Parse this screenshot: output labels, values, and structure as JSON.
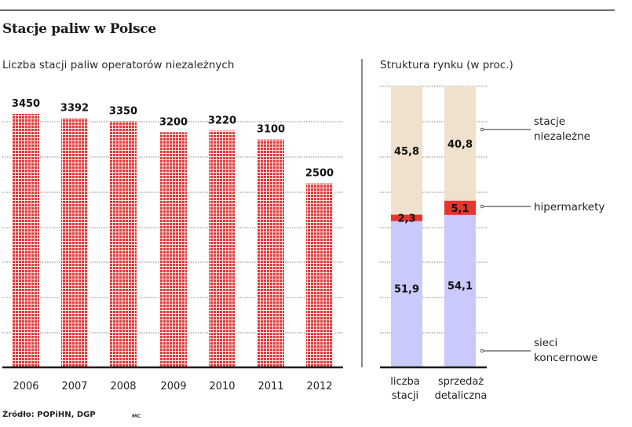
{
  "header": {
    "title": "Stacje paliw w Polsce"
  },
  "footer": {
    "source": "Źródło: POPiHN, DGP",
    "author": "MC"
  },
  "colors": {
    "bar_dots": "#e23a3a",
    "independent": "#efe1cc",
    "hypermarkets": "#e8332f",
    "chains": "#c9c9fb",
    "grid": "#9a9a9a",
    "axis": "#1a1a1a"
  },
  "chart_data": [
    {
      "type": "bar",
      "title": "Liczba stacji paliw operatorów niezależnych",
      "xlabel": "",
      "ylabel": "",
      "categories": [
        "2006",
        "2007",
        "2008",
        "2009",
        "2010",
        "2011",
        "2012"
      ],
      "values": [
        3450,
        3392,
        3350,
        3200,
        3220,
        3100,
        2500
      ],
      "data_labels": [
        "3450",
        "3392",
        "3350",
        "3200",
        "3220",
        "3100",
        "2500"
      ],
      "ylim": [
        0,
        3800
      ],
      "grid": true,
      "legend": "none"
    },
    {
      "type": "bar",
      "stacked": true,
      "title": "Struktura rynku (w proc.)",
      "categories": [
        "liczba stacji",
        "sprzedaż detaliczna"
      ],
      "category_lines": [
        [
          "liczba",
          "stacji"
        ],
        [
          "sprzedaż",
          "detaliczna"
        ]
      ],
      "series": [
        {
          "name": "sieci koncernowe",
          "name_lines": [
            "sieci",
            "koncernowe"
          ],
          "values": [
            51.9,
            54.1
          ],
          "labels": [
            "51,9",
            "54,1"
          ]
        },
        {
          "name": "hipermarkety",
          "name_lines": [
            "hipermarkety"
          ],
          "values": [
            2.3,
            5.1
          ],
          "labels": [
            "2,3",
            "5,1"
          ]
        },
        {
          "name": "stacje niezależne",
          "name_lines": [
            "stacje",
            "niezależne"
          ],
          "values": [
            45.8,
            40.8
          ],
          "labels": [
            "45,8",
            "40,8"
          ]
        }
      ],
      "ylim": [
        0,
        100
      ],
      "grid": true,
      "legend": "right"
    }
  ]
}
